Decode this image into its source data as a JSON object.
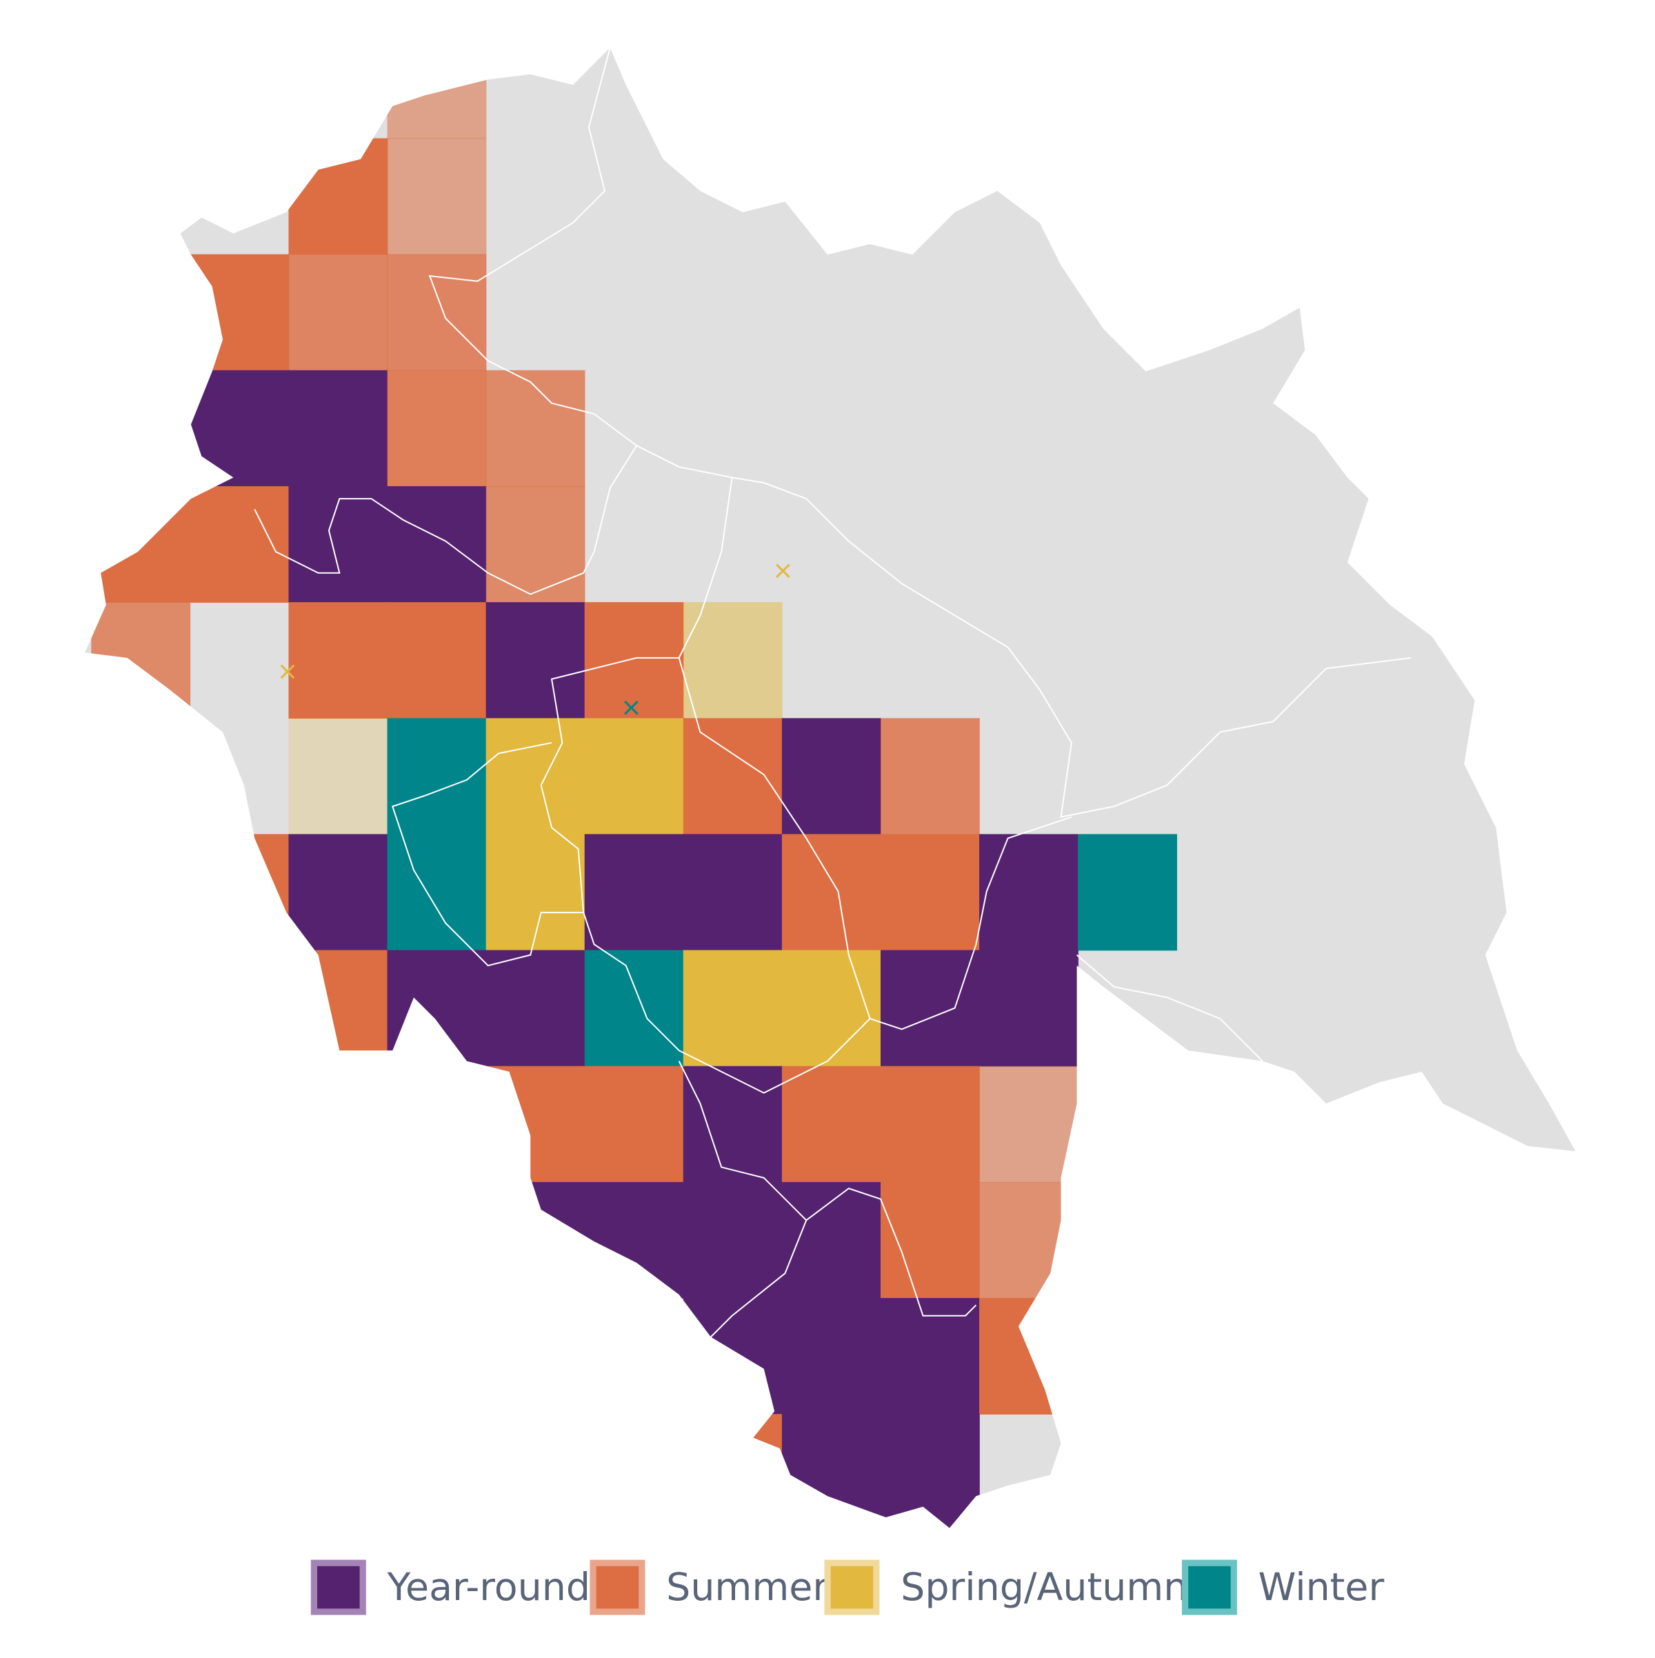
{
  "legend": {
    "items": [
      {
        "label": "Year-round",
        "color": "#55226f",
        "border": "#a384b5"
      },
      {
        "label": "Summer",
        "color": "#dd6d42",
        "border": "#e8a58a"
      },
      {
        "label": "Spring/Autumn",
        "color": "#e2b83e",
        "border": "#f0d99a"
      },
      {
        "label": "Winter",
        "color": "#00868a",
        "border": "#6ac2c3"
      }
    ]
  }
}
